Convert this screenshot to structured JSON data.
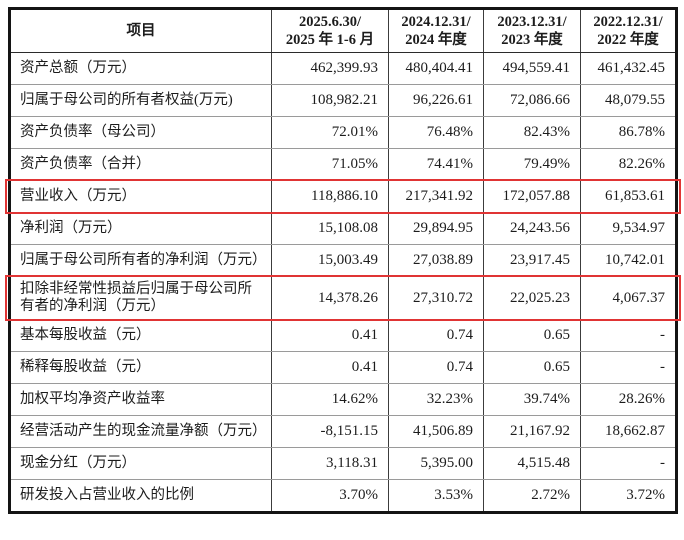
{
  "table": {
    "header": {
      "item_label": "项目",
      "periods": [
        {
          "line1": "2025.6.30/",
          "line2": "2025 年 1-6 月"
        },
        {
          "line1": "2024.12.31/",
          "line2": "2024 年度"
        },
        {
          "line1": "2023.12.31/",
          "line2": "2023 年度"
        },
        {
          "line1": "2022.12.31/",
          "line2": "2022 年度"
        }
      ]
    },
    "rows": [
      {
        "label": "资产总额（万元）",
        "values": [
          "462,399.93",
          "480,404.41",
          "494,559.41",
          "461,432.45"
        ],
        "highlight": false
      },
      {
        "label": "归属于母公司的所有者权益(万元)",
        "values": [
          "108,982.21",
          "96,226.61",
          "72,086.66",
          "48,079.55"
        ],
        "highlight": false
      },
      {
        "label": "资产负债率（母公司）",
        "values": [
          "72.01%",
          "76.48%",
          "82.43%",
          "86.78%"
        ],
        "highlight": false
      },
      {
        "label": "资产负债率（合并）",
        "values": [
          "71.05%",
          "74.41%",
          "79.49%",
          "82.26%"
        ],
        "highlight": false
      },
      {
        "label": "营业收入（万元）",
        "values": [
          "118,886.10",
          "217,341.92",
          "172,057.88",
          "61,853.61"
        ],
        "highlight": true
      },
      {
        "label": "净利润（万元）",
        "values": [
          "15,108.08",
          "29,894.95",
          "24,243.56",
          "9,534.97"
        ],
        "highlight": false
      },
      {
        "label": "归属于母公司所有者的净利润（万元）",
        "values": [
          "15,003.49",
          "27,038.89",
          "23,917.45",
          "10,742.01"
        ],
        "highlight": false
      },
      {
        "label": "扣除非经常性损益后归属于母公司所有者的净利润（万元）",
        "values": [
          "14,378.26",
          "27,310.72",
          "22,025.23",
          "4,067.37"
        ],
        "highlight": true
      },
      {
        "label": "基本每股收益（元）",
        "values": [
          "0.41",
          "0.74",
          "0.65",
          "-"
        ],
        "highlight": false
      },
      {
        "label": "稀释每股收益（元）",
        "values": [
          "0.41",
          "0.74",
          "0.65",
          "-"
        ],
        "highlight": false
      },
      {
        "label": "加权平均净资产收益率",
        "values": [
          "14.62%",
          "32.23%",
          "39.74%",
          "28.26%"
        ],
        "highlight": false
      },
      {
        "label": "经营活动产生的现金流量净额（万元）",
        "values": [
          "-8,151.15",
          "41,506.89",
          "21,167.92",
          "18,662.87"
        ],
        "highlight": false
      },
      {
        "label": "现金分红（万元）",
        "values": [
          "3,118.31",
          "5,395.00",
          "4,515.48",
          "-"
        ],
        "highlight": false
      },
      {
        "label": "研发投入占营业收入的比例",
        "values": [
          "3.70%",
          "3.53%",
          "2.72%",
          "3.72%"
        ],
        "highlight": false
      }
    ]
  },
  "colors": {
    "highlight_border": "#e03434"
  }
}
